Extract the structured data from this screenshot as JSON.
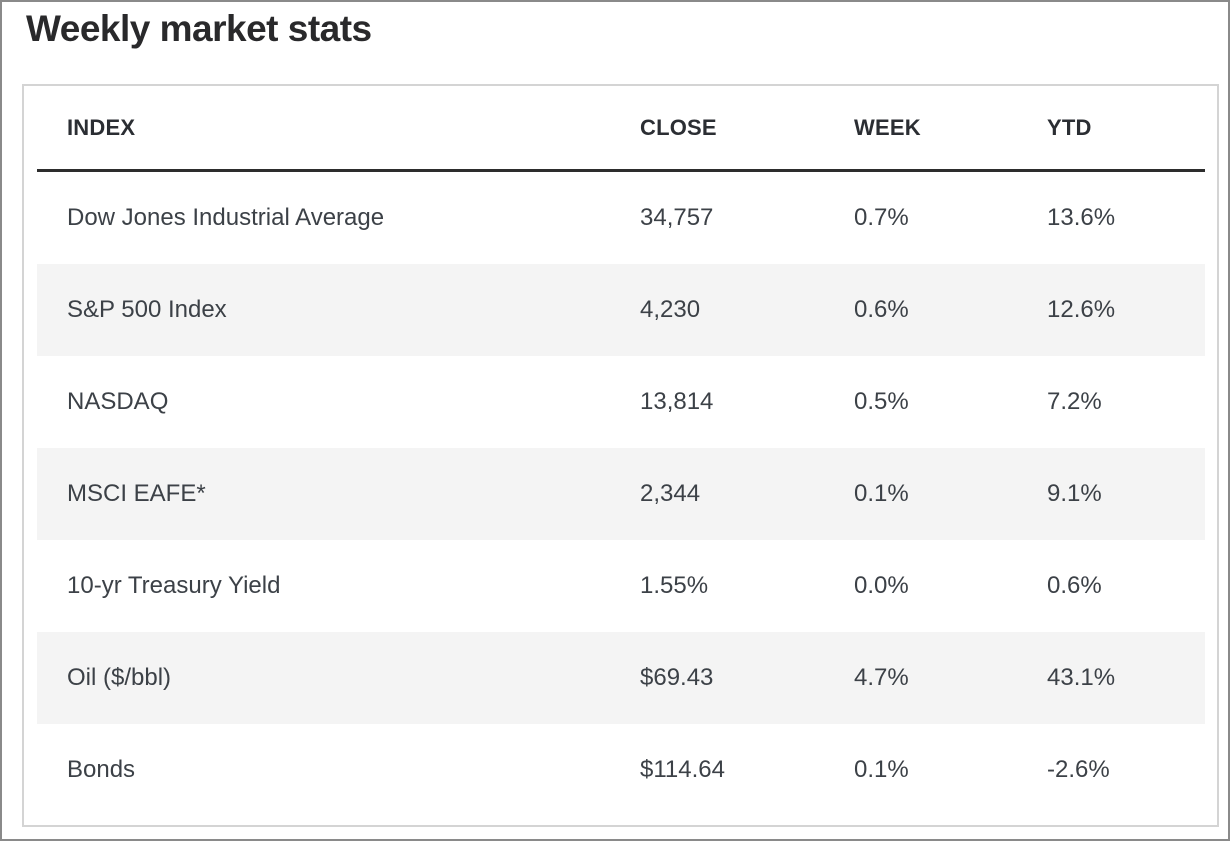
{
  "title": "Weekly market stats",
  "chart_data": {
    "type": "table",
    "title": "Weekly market stats",
    "columns": [
      "INDEX",
      "CLOSE",
      "WEEK",
      "YTD"
    ],
    "rows": [
      [
        "Dow Jones Industrial Average",
        "34,757",
        "0.7%",
        "13.6%"
      ],
      [
        "S&P 500 Index",
        "4,230",
        "0.6%",
        "12.6%"
      ],
      [
        "NASDAQ",
        "13,814",
        "0.5%",
        "7.2%"
      ],
      [
        "MSCI EAFE*",
        "2,344",
        "0.1%",
        "9.1%"
      ],
      [
        "10-yr Treasury Yield",
        "1.55%",
        "0.0%",
        "0.6%"
      ],
      [
        "Oil ($/bbl)",
        "$69.43",
        "4.7%",
        "43.1%"
      ],
      [
        "Bonds",
        "$114.64",
        "0.1%",
        "-2.6%"
      ]
    ],
    "layout_hints": {
      "striped_row_indices": [
        1,
        3,
        5
      ],
      "header_rule": true,
      "alignment": "left"
    }
  },
  "colors": {
    "stripe": "#f4f4f4",
    "header_rule": "#2d2d2d",
    "card_border": "#d4d4d4",
    "outer_border": "#8a8a8a",
    "body_text": "#3c4147",
    "header_text": "#2b2e33",
    "title_text": "#29292b"
  }
}
